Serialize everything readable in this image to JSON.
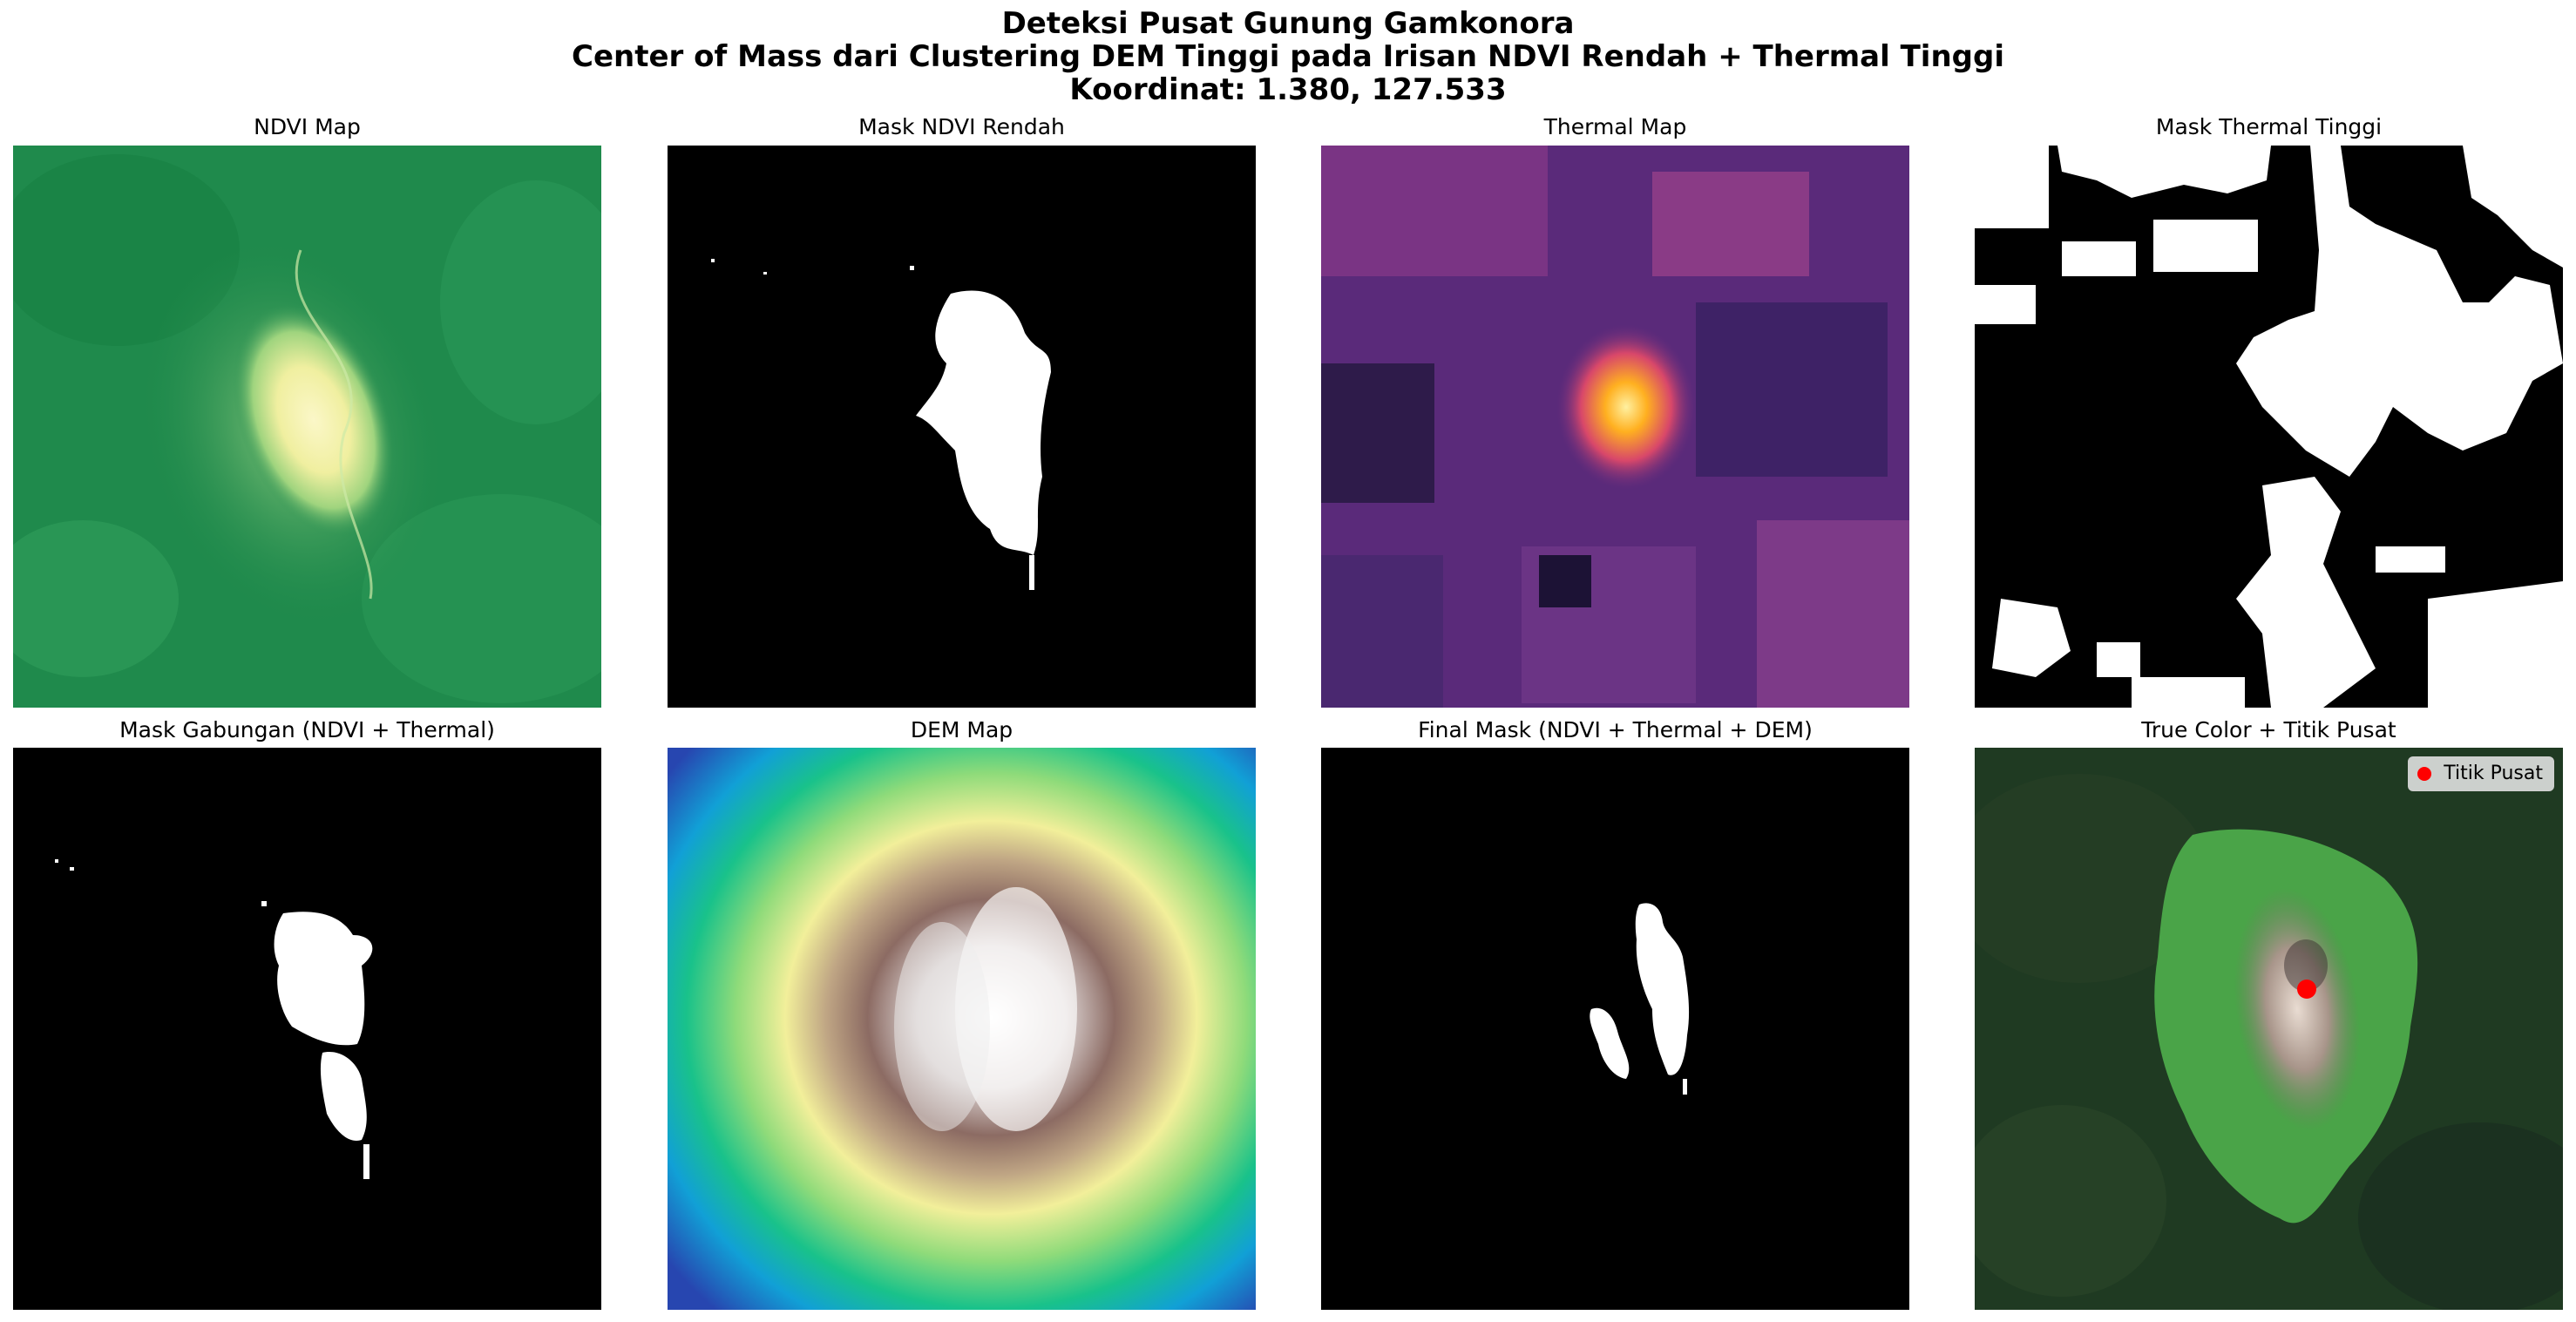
{
  "figure": {
    "title_line1": "Deteksi Pusat Gunung Gamkonora",
    "title_line2": "Center of Mass dari Clustering DEM Tinggi pada Irisan NDVI Rendah + Thermal Tinggi",
    "title_line3": "Koordinat: 1.380, 127.533"
  },
  "panels": [
    {
      "title": "NDVI Map"
    },
    {
      "title": "Mask NDVI Rendah"
    },
    {
      "title": "Thermal Map"
    },
    {
      "title": "Mask Thermal Tinggi"
    },
    {
      "title": "Mask Gabungan (NDVI + Thermal)"
    },
    {
      "title": "DEM Map"
    },
    {
      "title": "Final Mask (NDVI + Thermal + DEM)"
    },
    {
      "title": "True Color + Titik Pusat"
    }
  ],
  "legend": {
    "label": "Titik Pusat",
    "marker_color": "#ff0000"
  },
  "colors": {
    "ndvi_green": "#1f8a4c",
    "ndvi_low": "#f3f3a8",
    "thermal_base": "#5a2a7a",
    "thermal_hot": "#ffb020",
    "dem_low": "#1f6fd1",
    "dem_high": "#f2f2f2",
    "forest": "#1f3a22"
  }
}
